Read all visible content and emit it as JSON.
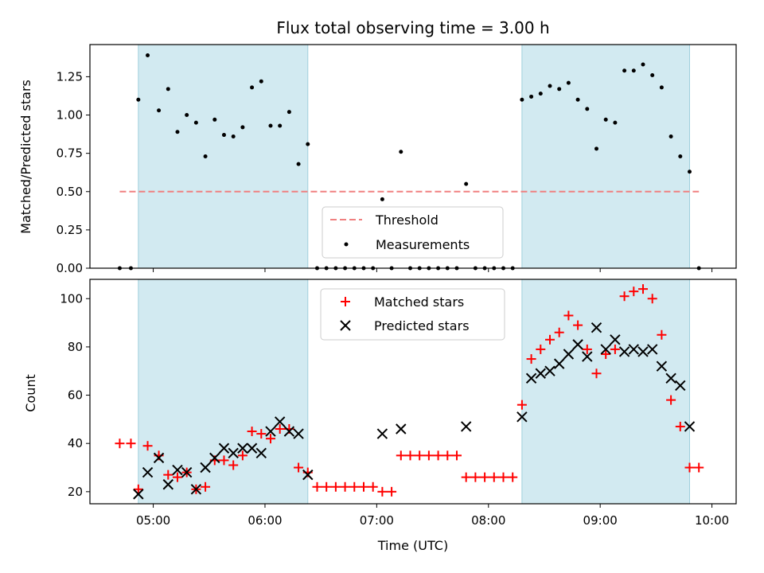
{
  "chart_data": [
    {
      "type": "scatter",
      "title": "Flux total observing time = 3.00 h",
      "xlabel": "",
      "ylabel": "Matched/Predicted stars",
      "xlim": [
        "04:26",
        "10:13"
      ],
      "ylim": [
        0,
        1.46
      ],
      "yticks": [
        "0.00",
        "0.25",
        "0.50",
        "0.75",
        "1.00",
        "1.25"
      ],
      "shaded_spans": [
        [
          "04:52",
          "06:23"
        ],
        [
          "08:18",
          "09:48"
        ]
      ],
      "shaded_color": "#add8e6",
      "threshold": {
        "name": "Threshold",
        "value": 0.5,
        "x_range": [
          "04:42",
          "09:53"
        ],
        "color": "#f08080"
      },
      "legend": {
        "position": "bottom-center",
        "entries": [
          "Threshold",
          "Measurements"
        ]
      },
      "series": [
        {
          "name": "Measurements",
          "marker": "dot",
          "color": "#000000",
          "points": [
            [
              "04:42",
              0
            ],
            [
              "04:48",
              0
            ],
            [
              "04:52",
              1.1
            ],
            [
              "04:57",
              1.39
            ],
            [
              "05:03",
              1.03
            ],
            [
              "05:08",
              1.17
            ],
            [
              "05:13",
              0.89
            ],
            [
              "05:18",
              1.0
            ],
            [
              "05:23",
              0.95
            ],
            [
              "05:28",
              0.73
            ],
            [
              "05:33",
              0.97
            ],
            [
              "05:38",
              0.87
            ],
            [
              "05:43",
              0.86
            ],
            [
              "05:48",
              0.92
            ],
            [
              "05:53",
              1.18
            ],
            [
              "05:58",
              1.22
            ],
            [
              "06:03",
              0.93
            ],
            [
              "06:08",
              0.93
            ],
            [
              "06:13",
              1.02
            ],
            [
              "06:18",
              0.68
            ],
            [
              "06:23",
              0.81
            ],
            [
              "06:28",
              0
            ],
            [
              "06:33",
              0
            ],
            [
              "06:38",
              0
            ],
            [
              "06:43",
              0
            ],
            [
              "06:48",
              0
            ],
            [
              "06:53",
              0
            ],
            [
              "06:58",
              0
            ],
            [
              "07:03",
              0.45
            ],
            [
              "07:08",
              0
            ],
            [
              "07:13",
              0.76
            ],
            [
              "07:18",
              0
            ],
            [
              "07:23",
              0
            ],
            [
              "07:28",
              0
            ],
            [
              "07:33",
              0
            ],
            [
              "07:38",
              0
            ],
            [
              "07:43",
              0
            ],
            [
              "07:48",
              0.55
            ],
            [
              "07:53",
              0
            ],
            [
              "07:58",
              0
            ],
            [
              "08:03",
              0
            ],
            [
              "08:08",
              0
            ],
            [
              "08:13",
              0
            ],
            [
              "08:18",
              1.1
            ],
            [
              "08:23",
              1.12
            ],
            [
              "08:28",
              1.14
            ],
            [
              "08:33",
              1.19
            ],
            [
              "08:38",
              1.17
            ],
            [
              "08:43",
              1.21
            ],
            [
              "08:48",
              1.1
            ],
            [
              "08:53",
              1.04
            ],
            [
              "08:58",
              0.78
            ],
            [
              "09:03",
              0.97
            ],
            [
              "09:08",
              0.95
            ],
            [
              "09:13",
              1.29
            ],
            [
              "09:18",
              1.29
            ],
            [
              "09:23",
              1.33
            ],
            [
              "09:28",
              1.26
            ],
            [
              "09:33",
              1.18
            ],
            [
              "09:38",
              0.86
            ],
            [
              "09:43",
              0.73
            ],
            [
              "09:48",
              0.63
            ],
            [
              "09:53",
              0
            ]
          ]
        }
      ]
    },
    {
      "type": "scatter",
      "title": "",
      "xlabel": "Time (UTC)",
      "ylabel": "Count",
      "xlim": [
        "04:26",
        "10:13"
      ],
      "ylim": [
        15,
        108
      ],
      "xticks": [
        "05:00",
        "06:00",
        "07:00",
        "08:00",
        "09:00",
        "10:00"
      ],
      "yticks": [
        "20",
        "40",
        "60",
        "80",
        "100"
      ],
      "shaded_spans": [
        [
          "04:52",
          "06:23"
        ],
        [
          "08:18",
          "09:48"
        ]
      ],
      "shaded_color": "#add8e6",
      "legend": {
        "position": "top-center",
        "entries": [
          "Matched stars",
          "Predicted stars"
        ]
      },
      "series": [
        {
          "name": "Matched stars",
          "marker": "plus",
          "color": "#ff0000",
          "points": [
            [
              "04:42",
              40
            ],
            [
              "04:48",
              40
            ],
            [
              "04:52",
              21
            ],
            [
              "04:57",
              39
            ],
            [
              "05:03",
              35
            ],
            [
              "05:08",
              27
            ],
            [
              "05:13",
              26
            ],
            [
              "05:18",
              28
            ],
            [
              "05:23",
              21
            ],
            [
              "05:28",
              22
            ],
            [
              "05:33",
              33
            ],
            [
              "05:38",
              33
            ],
            [
              "05:43",
              31
            ],
            [
              "05:48",
              35
            ],
            [
              "05:53",
              45
            ],
            [
              "05:58",
              44
            ],
            [
              "06:03",
              42
            ],
            [
              "06:08",
              46
            ],
            [
              "06:13",
              46
            ],
            [
              "06:18",
              30
            ],
            [
              "06:23",
              28
            ],
            [
              "06:28",
              22
            ],
            [
              "06:33",
              22
            ],
            [
              "06:38",
              22
            ],
            [
              "06:43",
              22
            ],
            [
              "06:48",
              22
            ],
            [
              "06:53",
              22
            ],
            [
              "06:58",
              22
            ],
            [
              "07:03",
              20
            ],
            [
              "07:08",
              20
            ],
            [
              "07:13",
              35
            ],
            [
              "07:18",
              35
            ],
            [
              "07:23",
              35
            ],
            [
              "07:28",
              35
            ],
            [
              "07:33",
              35
            ],
            [
              "07:38",
              35
            ],
            [
              "07:43",
              35
            ],
            [
              "07:48",
              26
            ],
            [
              "07:53",
              26
            ],
            [
              "07:58",
              26
            ],
            [
              "08:03",
              26
            ],
            [
              "08:08",
              26
            ],
            [
              "08:13",
              26
            ],
            [
              "08:18",
              56
            ],
            [
              "08:23",
              75
            ],
            [
              "08:28",
              79
            ],
            [
              "08:33",
              83
            ],
            [
              "08:38",
              86
            ],
            [
              "08:43",
              93
            ],
            [
              "08:48",
              89
            ],
            [
              "08:53",
              79
            ],
            [
              "08:58",
              69
            ],
            [
              "09:03",
              77
            ],
            [
              "09:08",
              79
            ],
            [
              "09:13",
              101
            ],
            [
              "09:18",
              103
            ],
            [
              "09:23",
              104
            ],
            [
              "09:28",
              100
            ],
            [
              "09:33",
              85
            ],
            [
              "09:38",
              58
            ],
            [
              "09:43",
              47
            ],
            [
              "09:48",
              30
            ],
            [
              "09:53",
              30
            ]
          ]
        },
        {
          "name": "Predicted stars",
          "marker": "x",
          "color": "#000000",
          "points": [
            [
              "04:52",
              19
            ],
            [
              "04:57",
              28
            ],
            [
              "05:03",
              34
            ],
            [
              "05:08",
              23
            ],
            [
              "05:13",
              29
            ],
            [
              "05:18",
              28
            ],
            [
              "05:23",
              21
            ],
            [
              "05:28",
              30
            ],
            [
              "05:33",
              34
            ],
            [
              "05:38",
              38
            ],
            [
              "05:43",
              36
            ],
            [
              "05:48",
              38
            ],
            [
              "05:53",
              38
            ],
            [
              "05:58",
              36
            ],
            [
              "06:03",
              45
            ],
            [
              "06:08",
              49
            ],
            [
              "06:13",
              45
            ],
            [
              "06:18",
              44
            ],
            [
              "06:23",
              27
            ],
            [
              "07:03",
              44
            ],
            [
              "07:13",
              46
            ],
            [
              "07:48",
              47
            ],
            [
              "08:18",
              51
            ],
            [
              "08:23",
              67
            ],
            [
              "08:28",
              69
            ],
            [
              "08:33",
              70
            ],
            [
              "08:38",
              73
            ],
            [
              "08:43",
              77
            ],
            [
              "08:48",
              81
            ],
            [
              "08:53",
              76
            ],
            [
              "08:58",
              88
            ],
            [
              "09:03",
              79
            ],
            [
              "09:08",
              83
            ],
            [
              "09:13",
              78
            ],
            [
              "09:18",
              79
            ],
            [
              "09:23",
              78
            ],
            [
              "09:28",
              79
            ],
            [
              "09:33",
              72
            ],
            [
              "09:38",
              67
            ],
            [
              "09:43",
              64
            ],
            [
              "09:48",
              47
            ]
          ]
        }
      ]
    }
  ]
}
